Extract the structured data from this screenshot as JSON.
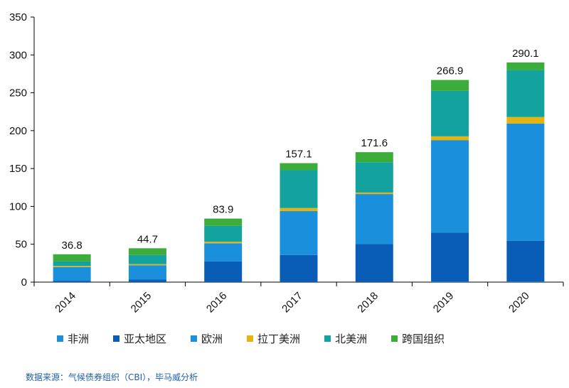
{
  "chart_data": {
    "type": "bar",
    "stacked": true,
    "categories": [
      "2014",
      "2015",
      "2016",
      "2017",
      "2018",
      "2019",
      "2020"
    ],
    "series": [
      {
        "name": "非洲",
        "color": "#1e8fd6",
        "values": [
          0.3,
          0.3,
          0.3,
          0.3,
          0.3,
          0.5,
          0.5
        ]
      },
      {
        "name": "亚太地区",
        "color": "#0a5db6",
        "values": [
          1.5,
          3.0,
          27.0,
          35.5,
          50.0,
          65.0,
          54.0
        ]
      },
      {
        "name": "欧洲",
        "color": "#1a8fdc",
        "values": [
          18.0,
          19.0,
          24.0,
          58.0,
          66.0,
          122.0,
          155.0
        ]
      },
      {
        "name": "拉丁美洲",
        "color": "#e7b40f",
        "values": [
          1.5,
          1.5,
          2.0,
          4.0,
          2.0,
          5.0,
          8.5
        ]
      },
      {
        "name": "北美洲",
        "color": "#14a29f",
        "values": [
          6.0,
          12.0,
          21.0,
          50.0,
          40.0,
          60.0,
          62.0
        ]
      },
      {
        "name": "跨国组织",
        "color": "#3cac3a",
        "values": [
          9.5,
          8.9,
          9.6,
          9.3,
          13.3,
          14.4,
          10.1
        ]
      }
    ],
    "totals": [
      "36.8",
      "44.7",
      "83.9",
      "157.1",
      "171.6",
      "266.9",
      "290.1"
    ],
    "yticks": [
      "0",
      "50",
      "100",
      "150",
      "200",
      "250",
      "300",
      "350"
    ],
    "ylim": [
      0,
      350
    ],
    "title": "",
    "xlabel": "",
    "ylabel": "",
    "legend_position": "bottom"
  },
  "source_text": "数据来源：气候债券组织（CBI），毕马威分析"
}
